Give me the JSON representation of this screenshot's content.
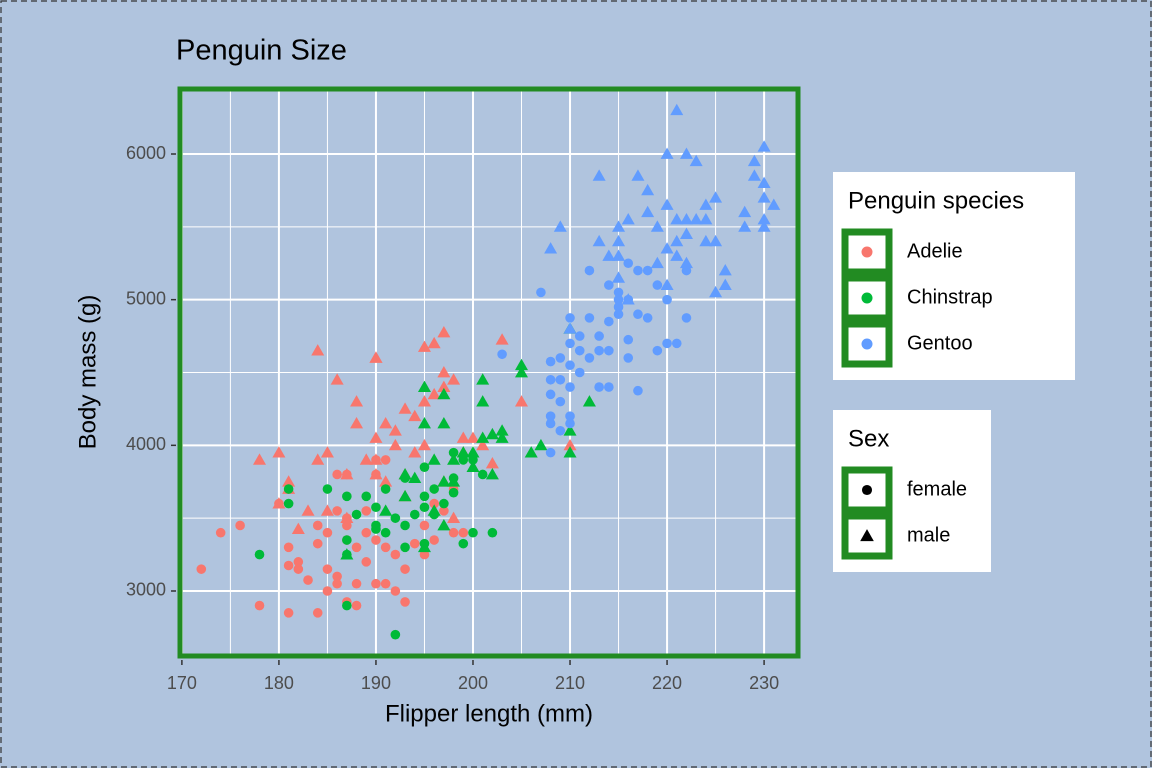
{
  "chart_data": {
    "type": "scatter",
    "title": "Penguin Size",
    "x_label": "Flipper length (mm)",
    "y_label": "Body mass (g)",
    "xlim": [
      169.6,
      233.7
    ],
    "ylim": [
      2540,
      6460
    ],
    "xticks": [
      170,
      180,
      190,
      200,
      210,
      220,
      230
    ],
    "yticks": [
      3000,
      4000,
      5000,
      6000
    ],
    "xminor": [
      175,
      185,
      195,
      205,
      215,
      225
    ],
    "yminor": [
      3500,
      4500,
      5500
    ],
    "grid": true,
    "legend": {
      "position": "right",
      "groups": [
        {
          "title": "Penguin species",
          "labels": [
            "Adelie",
            "Chinstrap",
            "Gentoo"
          ],
          "colors": [
            "#f8766d",
            "#00ba38",
            "#619cff"
          ]
        },
        {
          "title": "Sex",
          "labels": [
            "female",
            "male"
          ],
          "shapes": [
            "circle",
            "triangle"
          ]
        }
      ]
    },
    "series": [
      {
        "species": "Adelie",
        "sex": "female",
        "color": "#f8766d",
        "shape": "circle",
        "x": [
          172,
          174,
          176,
          178,
          180,
          181,
          181,
          182,
          182,
          181,
          183,
          184,
          184,
          184,
          185,
          185,
          185,
          186,
          186,
          186,
          186,
          187,
          187,
          187,
          187,
          188,
          188,
          188,
          189,
          189,
          190,
          190,
          190,
          190,
          191,
          191,
          191,
          192,
          192,
          193,
          193,
          194,
          195,
          195,
          196,
          196,
          197,
          198,
          198,
          199,
          187,
          189
        ],
        "values": [
          3150,
          3400,
          3450,
          2900,
          3600,
          3300,
          3175,
          3200,
          3150,
          2850,
          3075,
          3325,
          2850,
          3450,
          3000,
          3400,
          3150,
          3100,
          3050,
          3550,
          3800,
          3450,
          3500,
          2925,
          3800,
          3300,
          3050,
          2900,
          3200,
          3550,
          3050,
          3350,
          3800,
          3900,
          3050,
          3300,
          3900,
          3000,
          3250,
          3150,
          2925,
          3325,
          3450,
          3250,
          3600,
          3350,
          3550,
          3400,
          3700,
          3400,
          3350,
          3400
        ]
      },
      {
        "species": "Adelie",
        "sex": "male",
        "color": "#f8766d",
        "shape": "triangle",
        "x": [
          178,
          180,
          180,
          181,
          181,
          182,
          183,
          184,
          184,
          185,
          185,
          186,
          187,
          187,
          188,
          188,
          189,
          190,
          190,
          190,
          190,
          191,
          192,
          192,
          193,
          193,
          194,
          194,
          195,
          195,
          195,
          196,
          196,
          197,
          197,
          197,
          198,
          199,
          200,
          201,
          202,
          203,
          205,
          210,
          190,
          193,
          191,
          197,
          198,
          199
        ],
        "values": [
          3900,
          3950,
          3600,
          3750,
          3700,
          3425,
          3550,
          3900,
          4650,
          3550,
          3950,
          4450,
          3800,
          3500,
          4300,
          4150,
          3900,
          4600,
          4600,
          4050,
          3900,
          4150,
          4100,
          4000,
          4250,
          3650,
          4200,
          3950,
          4675,
          4300,
          4000,
          4350,
          4700,
          4400,
          4775,
          4500,
          4450,
          4050,
          4050,
          4000,
          3875,
          4725,
          4300,
          4000,
          3800,
          3800,
          3750,
          3750,
          3500,
          3950
        ]
      },
      {
        "species": "Chinstrap",
        "sex": "female",
        "color": "#00ba38",
        "shape": "circle",
        "x": [
          178,
          181,
          181,
          185,
          187,
          187,
          187,
          187,
          188,
          189,
          190,
          190,
          191,
          191,
          192,
          192,
          193,
          193,
          194,
          195,
          195,
          195,
          196,
          196,
          197,
          198,
          198,
          198,
          199,
          199,
          200,
          201,
          202,
          200,
          195,
          193,
          190
        ],
        "values": [
          3250,
          3600,
          3700,
          3700,
          3650,
          3350,
          3250,
          2900,
          3525,
          3650,
          3450,
          3575,
          3700,
          3400,
          3500,
          2700,
          3300,
          3775,
          3525,
          3650,
          3325,
          3850,
          3525,
          3700,
          3600,
          3775,
          3950,
          3675,
          3900,
          3325,
          3400,
          3800,
          3400,
          3900,
          3575,
          3450,
          3425
        ]
      },
      {
        "species": "Chinstrap",
        "sex": "male",
        "color": "#00ba38",
        "shape": "triangle",
        "x": [
          187,
          191,
          193,
          193,
          194,
          195,
          195,
          195,
          196,
          196,
          197,
          197,
          197,
          197,
          198,
          198,
          199,
          200,
          201,
          201,
          201,
          202,
          203,
          203,
          205,
          205,
          206,
          207,
          210,
          210,
          210,
          212,
          202,
          200
        ],
        "values": [
          3250,
          3550,
          3650,
          3800,
          3775,
          4400,
          4150,
          3300,
          3900,
          3550,
          4150,
          4350,
          3450,
          3750,
          3900,
          3750,
          3950,
          3950,
          4450,
          4300,
          4050,
          3800,
          4100,
          4050,
          4550,
          4500,
          3950,
          4000,
          4800,
          4100,
          3950,
          4300,
          4075,
          3850
        ]
      },
      {
        "species": "Gentoo",
        "sex": "female",
        "color": "#619cff",
        "shape": "circle",
        "x": [
          203,
          207,
          208,
          208,
          208,
          208,
          208,
          208,
          209,
          209,
          209,
          209,
          210,
          210,
          210,
          210,
          210,
          210,
          211,
          211,
          211,
          212,
          212,
          212,
          213,
          213,
          213,
          214,
          214,
          214,
          214,
          215,
          215,
          215,
          215,
          216,
          216,
          216,
          216,
          217,
          217,
          217,
          218,
          218,
          219,
          219,
          220,
          220,
          221,
          222,
          222
        ],
        "values": [
          4625,
          5050,
          4575,
          4450,
          4350,
          4200,
          4150,
          3950,
          4600,
          4450,
          4300,
          4100,
          4875,
          4700,
          4550,
          4400,
          4200,
          4150,
          4500,
          4750,
          4650,
          4875,
          4600,
          5200,
          4750,
          4650,
          4400,
          4850,
          4650,
          4400,
          5100,
          4950,
          5000,
          5050,
          4900,
          5000,
          4725,
          4600,
          5250,
          4900,
          5200,
          4375,
          4875,
          5200,
          4650,
          5100,
          4700,
          5000,
          4700,
          4875,
          5200
        ]
      },
      {
        "species": "Gentoo",
        "sex": "male",
        "color": "#619cff",
        "shape": "triangle",
        "x": [
          208,
          209,
          210,
          213,
          213,
          214,
          215,
          215,
          215,
          215,
          216,
          216,
          217,
          218,
          218,
          219,
          219,
          220,
          220,
          220,
          220,
          221,
          221,
          221,
          221,
          222,
          222,
          222,
          222,
          223,
          223,
          224,
          224,
          225,
          225,
          225,
          226,
          228,
          228,
          229,
          229,
          230,
          230,
          230,
          230,
          230,
          231,
          226,
          224
        ],
        "values": [
          5350,
          5500,
          4800,
          5400,
          5850,
          5300,
          5500,
          5400,
          5300,
          5150,
          5550,
          5000,
          5850,
          5750,
          5600,
          5500,
          5250,
          6000,
          5650,
          5350,
          5100,
          6300,
          5550,
          5400,
          5300,
          6000,
          5550,
          5450,
          5250,
          5950,
          5550,
          5650,
          5550,
          5700,
          5400,
          5050,
          5200,
          5600,
          5500,
          5950,
          5850,
          6050,
          5800,
          5700,
          5550,
          5500,
          5650,
          5100,
          5400
        ]
      }
    ]
  }
}
